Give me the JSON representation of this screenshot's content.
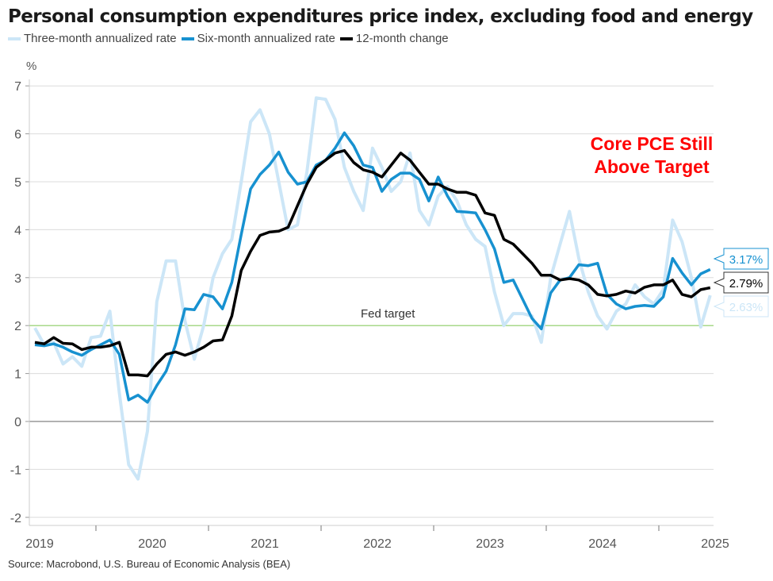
{
  "title": "Personal consumption expenditures price index, excluding food and energy",
  "source": "Source: Macrobond, U.S. Bureau of Economic Analysis (BEA)",
  "annotation": {
    "line1": "Core PCE Still",
    "line2": "Above Target",
    "color": "#ff0000"
  },
  "chart_data": {
    "type": "line",
    "title": "Personal consumption expenditures price index, excluding food and energy",
    "ylabel": "%",
    "xlabel": "",
    "ylim": [
      -2,
      7
    ],
    "yticks": [
      -2,
      -1,
      0,
      1,
      2,
      3,
      4,
      5,
      6,
      7
    ],
    "x_tick_labels": [
      "2019",
      "2020",
      "2021",
      "2022",
      "2023",
      "2024",
      "2025"
    ],
    "x_start": "2019-01",
    "frequency": "monthly",
    "grid": true,
    "legend_position": "top-left",
    "reference_line": {
      "label": "Fed target",
      "value": 2,
      "color": "#a8d88a"
    },
    "series": [
      {
        "name": "Three-month annualized rate",
        "color": "#cce6f7",
        "end_label": "2.63%",
        "values": [
          1.95,
          1.6,
          1.65,
          1.2,
          1.35,
          1.15,
          1.75,
          1.78,
          2.3,
          0.6,
          -0.9,
          -1.2,
          -0.2,
          2.5,
          3.35,
          3.35,
          2.1,
          1.3,
          2.0,
          3.0,
          3.5,
          3.8,
          5.0,
          6.25,
          6.5,
          6.0,
          5.0,
          4.0,
          4.1,
          5.2,
          6.75,
          6.72,
          6.3,
          5.3,
          4.8,
          4.4,
          5.7,
          5.3,
          4.8,
          5.0,
          5.6,
          4.4,
          4.1,
          4.7,
          4.9,
          4.6,
          4.1,
          3.8,
          3.65,
          2.7,
          2.0,
          2.25,
          2.25,
          2.2,
          1.65,
          3.0,
          3.7,
          4.38,
          3.4,
          2.7,
          2.2,
          1.93,
          2.3,
          2.45,
          2.85,
          2.6,
          2.45,
          2.75,
          4.2,
          3.75,
          3.0,
          1.97,
          2.63
        ]
      },
      {
        "name": "Six-month annualized rate",
        "color": "#1791d0",
        "end_label": "3.17%",
        "values": [
          1.6,
          1.58,
          1.62,
          1.55,
          1.45,
          1.38,
          1.5,
          1.6,
          1.7,
          1.4,
          0.45,
          0.55,
          0.4,
          0.75,
          1.05,
          1.6,
          2.35,
          2.33,
          2.65,
          2.6,
          2.35,
          2.9,
          3.9,
          4.85,
          5.15,
          5.35,
          5.62,
          5.2,
          4.95,
          5.0,
          5.35,
          5.45,
          5.7,
          6.02,
          5.75,
          5.35,
          5.3,
          4.8,
          5.05,
          5.18,
          5.18,
          5.05,
          4.6,
          5.1,
          4.7,
          4.38,
          4.37,
          4.35,
          4.0,
          3.6,
          2.9,
          2.95,
          2.55,
          2.15,
          1.93,
          2.68,
          2.95,
          3.0,
          3.27,
          3.25,
          3.3,
          2.65,
          2.45,
          2.35,
          2.4,
          2.42,
          2.4,
          2.6,
          3.4,
          3.1,
          2.85,
          3.08,
          3.17
        ]
      },
      {
        "name": "12-month change",
        "color": "#000000",
        "end_label": "2.79%",
        "values": [
          1.65,
          1.62,
          1.75,
          1.63,
          1.62,
          1.5,
          1.55,
          1.55,
          1.58,
          1.65,
          0.97,
          0.97,
          0.95,
          1.2,
          1.4,
          1.45,
          1.38,
          1.45,
          1.55,
          1.68,
          1.7,
          2.2,
          3.15,
          3.55,
          3.88,
          3.95,
          3.97,
          4.05,
          4.5,
          4.95,
          5.3,
          5.45,
          5.6,
          5.65,
          5.4,
          5.25,
          5.2,
          5.1,
          5.35,
          5.6,
          5.45,
          5.2,
          4.95,
          4.95,
          4.85,
          4.78,
          4.78,
          4.72,
          4.35,
          4.3,
          3.8,
          3.7,
          3.5,
          3.3,
          3.05,
          3.05,
          2.95,
          2.98,
          2.95,
          2.85,
          2.65,
          2.62,
          2.65,
          2.72,
          2.68,
          2.8,
          2.85,
          2.85,
          2.95,
          2.65,
          2.6,
          2.75,
          2.79
        ]
      }
    ]
  }
}
